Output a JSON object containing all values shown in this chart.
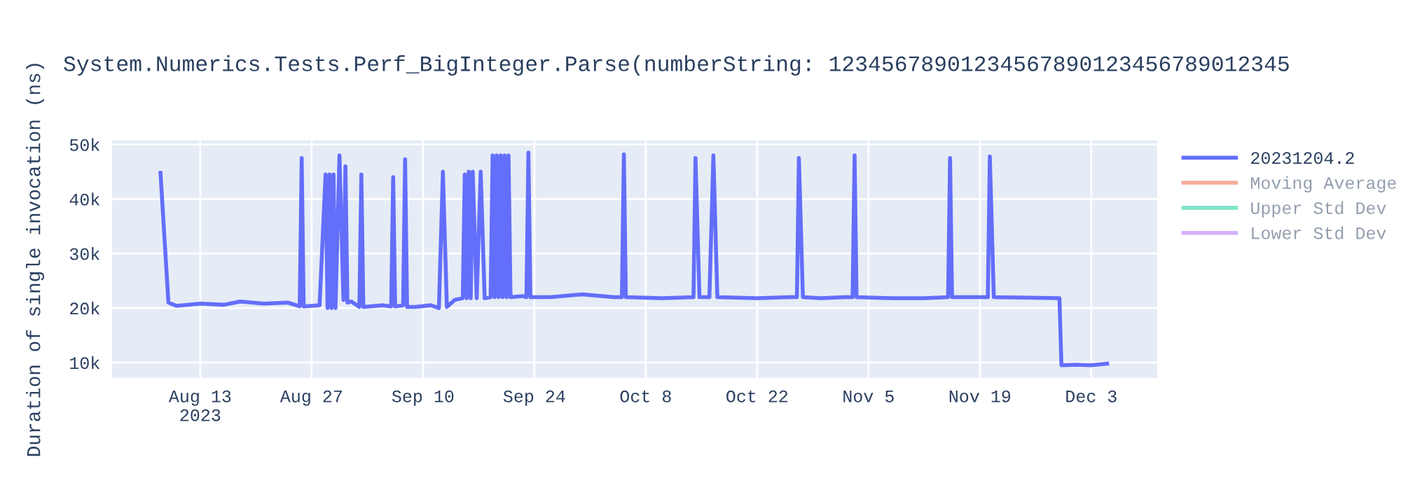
{
  "chart_data": {
    "type": "line",
    "title": "System.Numerics.Tests.Perf_BigInteger.Parse(numberString: 12345678901234567890123456789012345",
    "ylabel": "Duration of single invocation (ns)",
    "x": [
      "2023-08-08",
      "2023-08-09",
      "2023-08-10",
      "2023-08-13",
      "2023-08-16",
      "2023-08-18",
      "2023-08-21",
      "2023-08-24",
      "2023-08-25T12:00",
      "2023-08-25T18:00",
      "2023-08-26",
      "2023-08-28",
      "2023-08-28T18:00",
      "2023-08-29",
      "2023-08-29T06:00",
      "2023-08-29T12:00",
      "2023-08-29T18:00",
      "2023-08-30",
      "2023-08-30T12:00",
      "2023-08-31",
      "2023-08-31T06:00",
      "2023-08-31T12:00",
      "2023-09-01",
      "2023-09-02",
      "2023-09-02T06:00",
      "2023-09-02T12:00",
      "2023-09-05",
      "2023-09-06",
      "2023-09-06T06:00",
      "2023-09-06T12:00",
      "2023-09-07T12:00",
      "2023-09-07T18:00",
      "2023-09-08",
      "2023-09-09",
      "2023-09-11",
      "2023-09-12",
      "2023-09-12T12:00",
      "2023-09-13",
      "2023-09-14",
      "2023-09-15",
      "2023-09-15T06:00",
      "2023-09-15T12:00",
      "2023-09-15T18:00",
      "2023-09-16",
      "2023-09-16T06:00",
      "2023-09-16T18:00",
      "2023-09-17T06:00",
      "2023-09-17T18:00",
      "2023-09-18T12:00",
      "2023-09-18T18:00",
      "2023-09-19",
      "2023-09-19T06:00",
      "2023-09-19T12:00",
      "2023-09-19T18:00",
      "2023-09-20",
      "2023-09-20T06:00",
      "2023-09-20T12:00",
      "2023-09-20T18:00",
      "2023-09-21",
      "2023-09-22T12:00",
      "2023-09-23",
      "2023-09-23T06:00",
      "2023-09-23T12:00",
      "2023-09-26",
      "2023-09-30",
      "2023-10-04",
      "2023-10-05",
      "2023-10-05T06:00",
      "2023-10-05T12:00",
      "2023-10-10",
      "2023-10-14",
      "2023-10-14T06:00",
      "2023-10-14T18:00",
      "2023-10-16",
      "2023-10-16T12:00",
      "2023-10-17",
      "2023-10-22",
      "2023-10-26",
      "2023-10-27",
      "2023-10-27T06:00",
      "2023-10-27T18:00",
      "2023-10-30",
      "2023-11-02",
      "2023-11-03",
      "2023-11-03T06:00",
      "2023-11-03T12:00",
      "2023-11-08",
      "2023-11-12",
      "2023-11-15",
      "2023-11-15T06:00",
      "2023-11-15T12:00",
      "2023-11-20",
      "2023-11-20T06:00",
      "2023-11-20T18:00",
      "2023-11-25",
      "2023-11-29",
      "2023-11-29T06:00",
      "2023-12-01",
      "2023-12-03",
      "2023-12-05"
    ],
    "series": [
      {
        "name": "20231204.2",
        "color": "#636efa",
        "values": [
          44800,
          21000,
          20400,
          20800,
          20600,
          21200,
          20800,
          21000,
          20300,
          47500,
          20300,
          20500,
          44500,
          20000,
          44500,
          20000,
          44500,
          20000,
          48000,
          21500,
          46000,
          21000,
          21200,
          20200,
          44500,
          20200,
          20500,
          20300,
          44000,
          20300,
          20500,
          47300,
          20200,
          20200,
          20500,
          20000,
          45000,
          20200,
          21500,
          21800,
          44500,
          21800,
          45000,
          21800,
          45000,
          21800,
          45000,
          21800,
          22000,
          48000,
          22000,
          48000,
          22000,
          48000,
          22000,
          48000,
          22000,
          48000,
          22000,
          22200,
          22000,
          48500,
          22000,
          22000,
          22500,
          22000,
          22000,
          48200,
          22000,
          21800,
          22000,
          47500,
          22000,
          22000,
          48000,
          22000,
          21800,
          22000,
          22000,
          47500,
          22000,
          21800,
          22000,
          22000,
          48000,
          22000,
          21800,
          21800,
          22000,
          47500,
          22000,
          22000,
          47800,
          22000,
          21900,
          21800,
          9500,
          9600,
          9500,
          9800
        ]
      },
      {
        "name": "Moving Average",
        "color": "#ef553b",
        "values": [
          null,
          null,
          null,
          null,
          null,
          null,
          null,
          null,
          null,
          null,
          null,
          null,
          null,
          null,
          null,
          null,
          null,
          null,
          null,
          null,
          null,
          null,
          null,
          null,
          null,
          null,
          null,
          null,
          null,
          null,
          null,
          null,
          null,
          null,
          null,
          null,
          null,
          null,
          null,
          null,
          null,
          null,
          null,
          null,
          null,
          null,
          null,
          null,
          null,
          null,
          null,
          null,
          null,
          null,
          null,
          null,
          null,
          null,
          null,
          null,
          null,
          null,
          null,
          null,
          null,
          null,
          null,
          null,
          null,
          null,
          null,
          null,
          null,
          null,
          null,
          null,
          null,
          null,
          null,
          null,
          null,
          null,
          null,
          null,
          null,
          null,
          null,
          null,
          null,
          null,
          null,
          null,
          null,
          null,
          null,
          null,
          null,
          null,
          null,
          null
        ]
      },
      {
        "name": "Upper Std Dev",
        "color": "#00cc96",
        "values": [
          null,
          null,
          null,
          null,
          null,
          null,
          null,
          null,
          null,
          null,
          null,
          null,
          null,
          null,
          null,
          null,
          null,
          null,
          null,
          null,
          null,
          null,
          null,
          null,
          null,
          null,
          null,
          null,
          null,
          null,
          null,
          null,
          null,
          null,
          null,
          null,
          null,
          null,
          null,
          null,
          null,
          null,
          null,
          null,
          null,
          null,
          null,
          null,
          null,
          null,
          null,
          null,
          null,
          null,
          null,
          null,
          null,
          null,
          null,
          null,
          null,
          null,
          null,
          null,
          null,
          null,
          null,
          null,
          null,
          null,
          null,
          null,
          null,
          null,
          null,
          null,
          null,
          null,
          null,
          null,
          null,
          null,
          null,
          null,
          null,
          null,
          null,
          null,
          null,
          null,
          null,
          null,
          null,
          null,
          null,
          null,
          null,
          null,
          null,
          null
        ]
      },
      {
        "name": "Lower Std Dev",
        "color": "#ab63fa",
        "values": [
          null,
          null,
          null,
          null,
          null,
          null,
          null,
          null,
          null,
          null,
          null,
          null,
          null,
          null,
          null,
          null,
          null,
          null,
          null,
          null,
          null,
          null,
          null,
          null,
          null,
          null,
          null,
          null,
          null,
          null,
          null,
          null,
          null,
          null,
          null,
          null,
          null,
          null,
          null,
          null,
          null,
          null,
          null,
          null,
          null,
          null,
          null,
          null,
          null,
          null,
          null,
          null,
          null,
          null,
          null,
          null,
          null,
          null,
          null,
          null,
          null,
          null,
          null,
          null,
          null,
          null,
          null,
          null,
          null,
          null,
          null,
          null,
          null,
          null,
          null,
          null,
          null,
          null,
          null,
          null,
          null,
          null,
          null,
          null,
          null,
          null,
          null,
          null,
          null,
          null,
          null,
          null,
          null,
          null,
          null,
          null,
          null,
          null,
          null,
          null
        ]
      }
    ],
    "xlim": [
      "2023-08-01T22:00",
      "2023-12-11T07:00"
    ],
    "xticks": [
      {
        "value": "2023-08-13",
        "label": "Aug 13\n2023"
      },
      {
        "value": "2023-08-27",
        "label": "Aug 27"
      },
      {
        "value": "2023-09-10",
        "label": "Sep 10"
      },
      {
        "value": "2023-09-24",
        "label": "Sep 24"
      },
      {
        "value": "2023-10-08",
        "label": "Oct 8"
      },
      {
        "value": "2023-10-22",
        "label": "Oct 22"
      },
      {
        "value": "2023-11-05",
        "label": "Nov 5"
      },
      {
        "value": "2023-11-19",
        "label": "Nov 19"
      },
      {
        "value": "2023-12-03",
        "label": "Dec 3"
      }
    ],
    "ylim": [
      7200,
      50800
    ],
    "yticks": [
      {
        "value": 10000,
        "label": "10k"
      },
      {
        "value": 20000,
        "label": "20k"
      },
      {
        "value": 30000,
        "label": "30k"
      },
      {
        "value": 40000,
        "label": "40k"
      },
      {
        "value": 50000,
        "label": "50k"
      }
    ],
    "grid": true,
    "legend": "top right",
    "marker": "none",
    "line_style": "solid"
  }
}
